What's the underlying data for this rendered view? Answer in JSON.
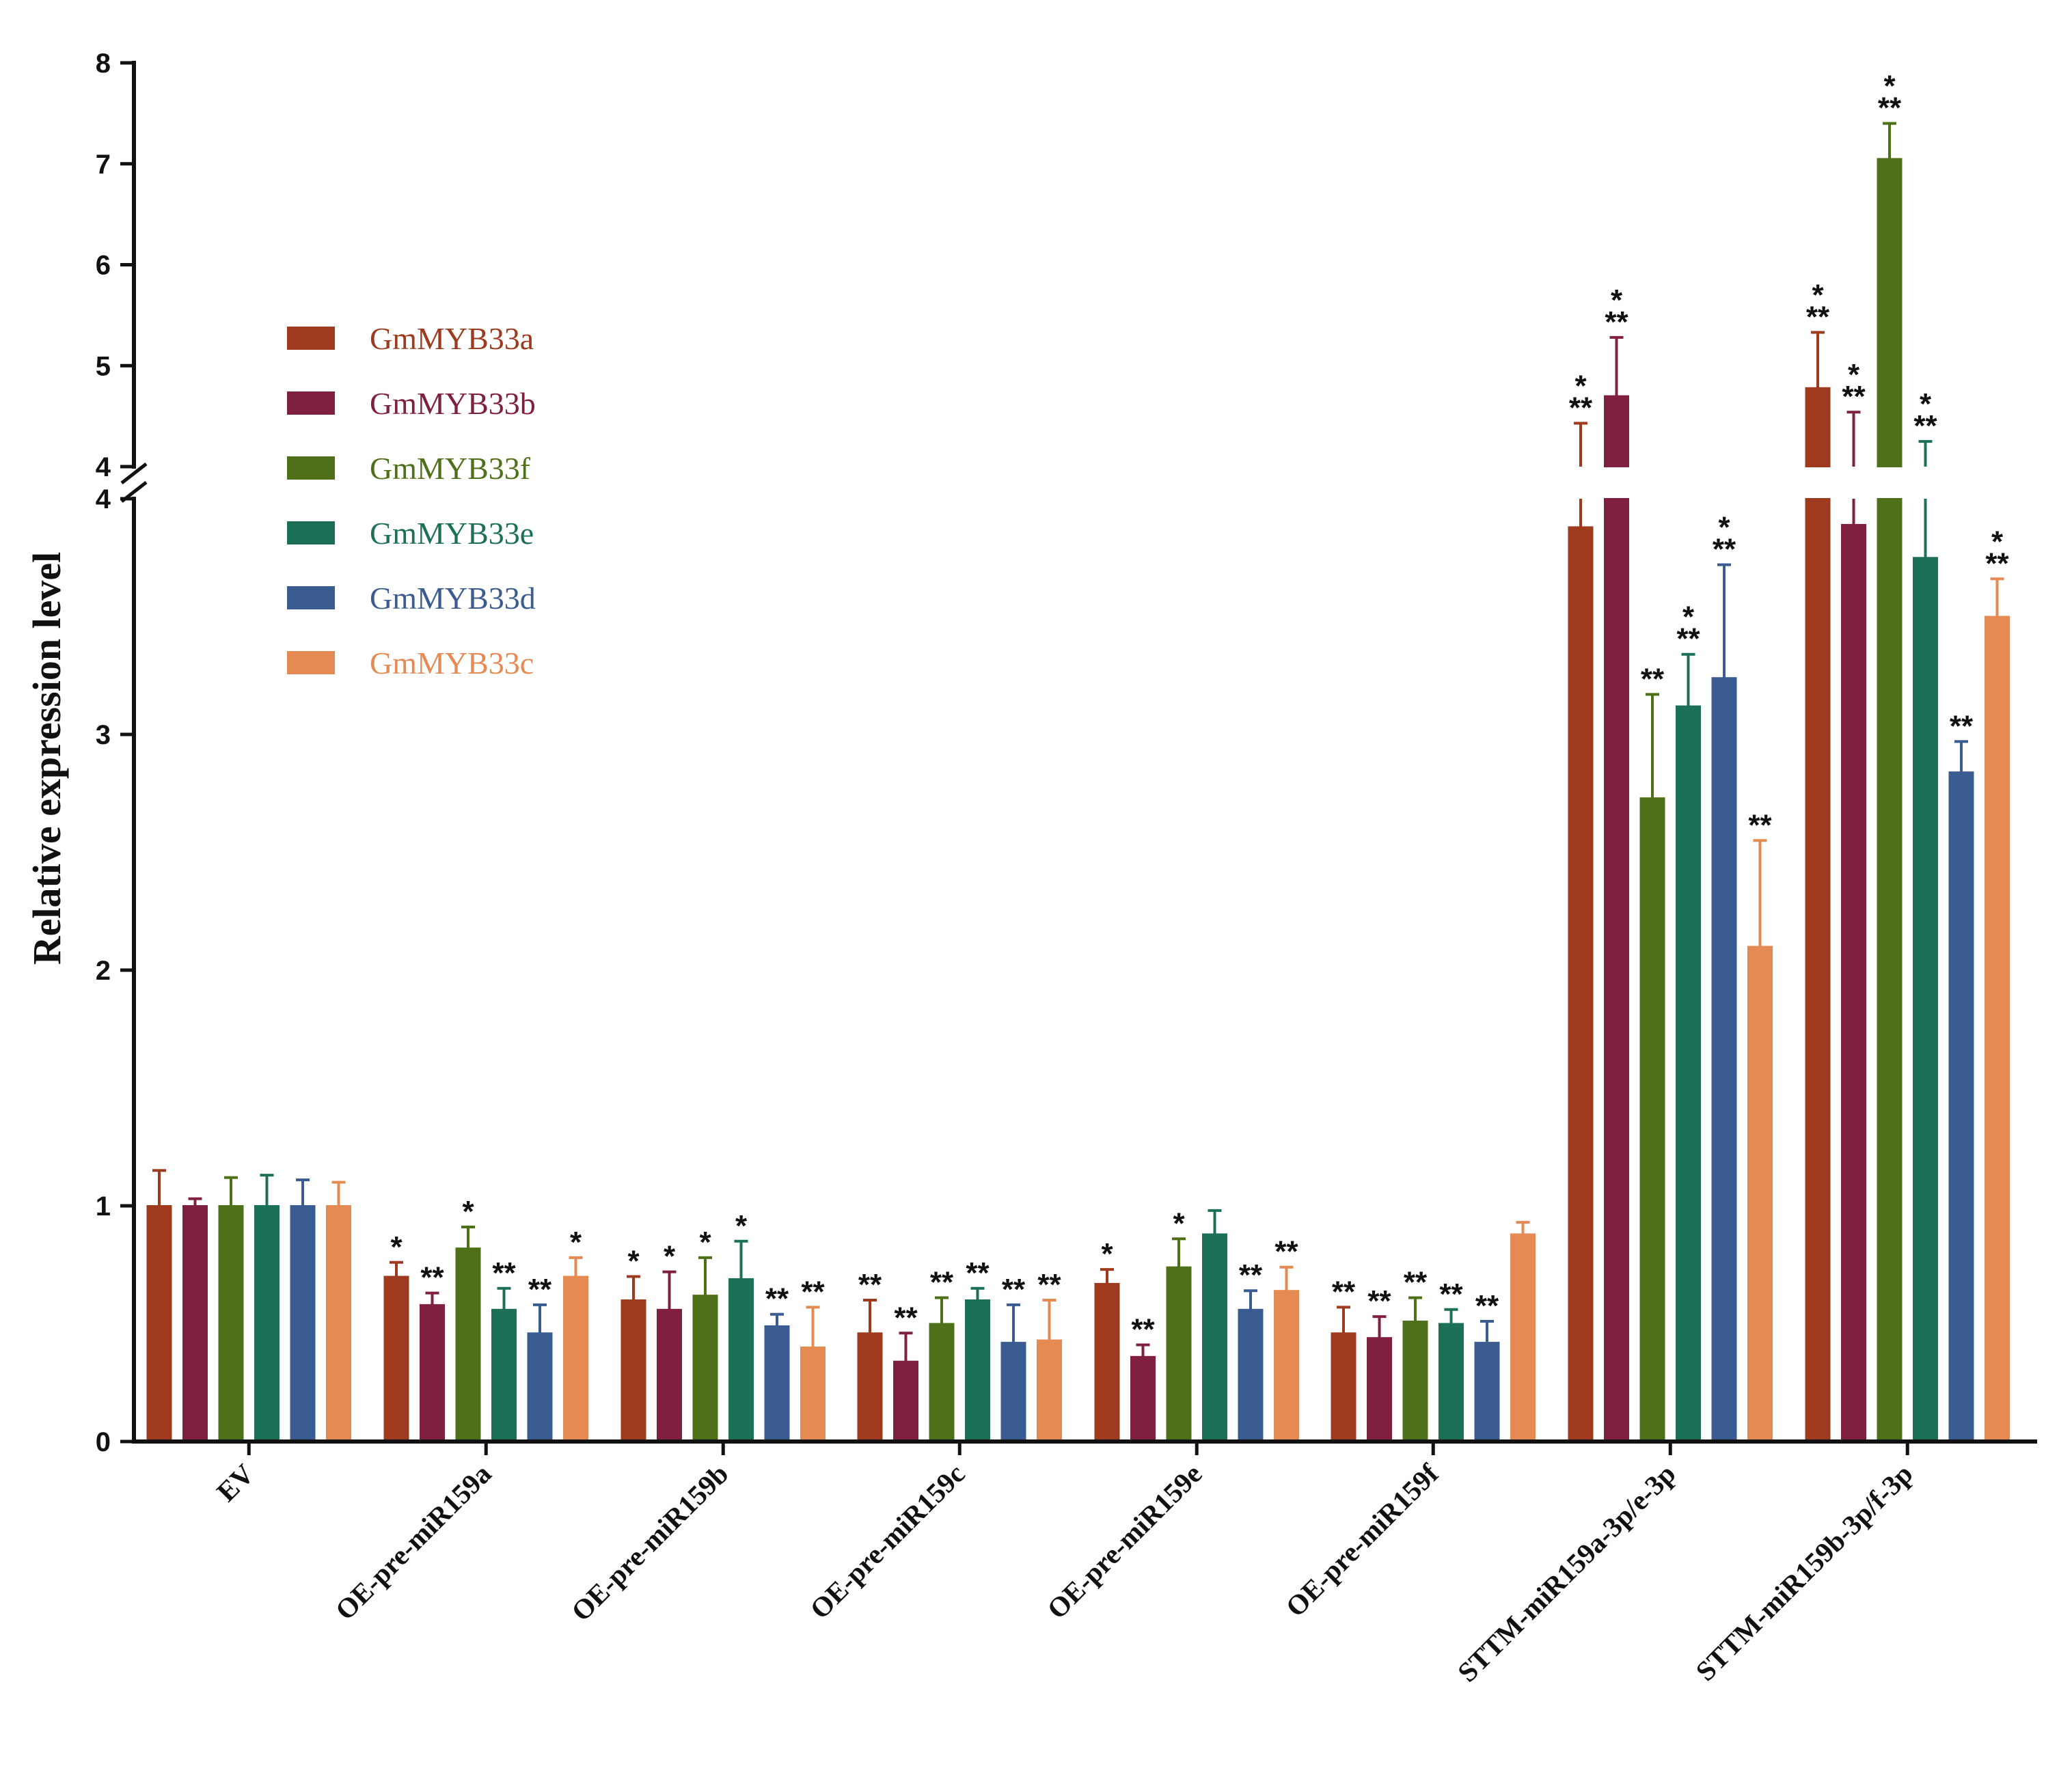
{
  "chart_data": {
    "type": "bar",
    "ylabel": "Relative expression level",
    "xlabel": "",
    "y_axis_lower": {
      "range": [
        0,
        4
      ],
      "ticks": [
        "0",
        "1",
        "2",
        "3",
        "4"
      ]
    },
    "y_axis_upper": {
      "range": [
        4,
        8
      ],
      "ticks": [
        "4",
        "5",
        "6",
        "7",
        "8"
      ]
    },
    "axis_break_at": 4,
    "legend_position": "upper-left",
    "categories": [
      "EV",
      "OE-pre-miR159a",
      "OE-pre-miR159b",
      "OE-pre-miR159c",
      "OE-pre-miR159e",
      "OE-pre-miR159f",
      "STTM-miR159a-3p/e-3p",
      "STTM-miR159b-3p/f-3p"
    ],
    "series": [
      {
        "name": "GmMYB33a",
        "color": "#9e3b1e",
        "values": [
          1.0,
          0.7,
          0.6,
          0.46,
          0.67,
          0.46,
          3.88,
          4.78
        ],
        "errors": [
          0.15,
          0.06,
          0.1,
          0.14,
          0.06,
          0.11,
          0.55,
          0.55
        ],
        "sig": [
          "",
          "*",
          "*",
          "**",
          "*",
          "**",
          "***",
          "***"
        ]
      },
      {
        "name": "GmMYB33b",
        "color": "#80203f",
        "values": [
          1.0,
          0.58,
          0.56,
          0.34,
          0.36,
          0.44,
          4.7,
          3.89
        ],
        "errors": [
          0.03,
          0.05,
          0.16,
          0.12,
          0.05,
          0.09,
          0.58,
          0.65
        ],
        "sig": [
          "",
          "**",
          "*",
          "**",
          "**",
          "**",
          "***",
          "***"
        ]
      },
      {
        "name": "GmMYB33f",
        "color": "#4e7018",
        "values": [
          1.0,
          0.82,
          0.62,
          0.5,
          0.74,
          0.51,
          2.73,
          7.05
        ],
        "errors": [
          0.12,
          0.09,
          0.16,
          0.11,
          0.12,
          0.1,
          0.44,
          0.35
        ],
        "sig": [
          "",
          "*",
          "*",
          "**",
          "*",
          "**",
          "**",
          "***"
        ]
      },
      {
        "name": "GmMYB33e",
        "color": "#1d7058",
        "values": [
          1.0,
          0.56,
          0.69,
          0.6,
          0.88,
          0.5,
          3.12,
          3.75
        ],
        "errors": [
          0.13,
          0.09,
          0.16,
          0.05,
          0.1,
          0.06,
          0.22,
          0.5
        ],
        "sig": [
          "",
          "**",
          "*",
          "**",
          "",
          "**",
          "***",
          "***"
        ]
      },
      {
        "name": "GmMYB33d",
        "color": "#3a5c90",
        "values": [
          1.0,
          0.46,
          0.49,
          0.42,
          0.56,
          0.42,
          3.24,
          2.84
        ],
        "errors": [
          0.11,
          0.12,
          0.05,
          0.16,
          0.08,
          0.09,
          0.48,
          0.13
        ],
        "sig": [
          "",
          "**",
          "**",
          "**",
          "**",
          "**",
          "***",
          "**"
        ]
      },
      {
        "name": "GmMYB33c",
        "color": "#e58a52",
        "values": [
          1.0,
          0.7,
          0.4,
          0.43,
          0.64,
          0.88,
          2.1,
          3.5
        ],
        "errors": [
          0.1,
          0.08,
          0.17,
          0.17,
          0.1,
          0.05,
          0.45,
          0.16
        ],
        "sig": [
          "",
          "*",
          "**",
          "**",
          "**",
          "",
          "**",
          "***"
        ]
      }
    ]
  }
}
